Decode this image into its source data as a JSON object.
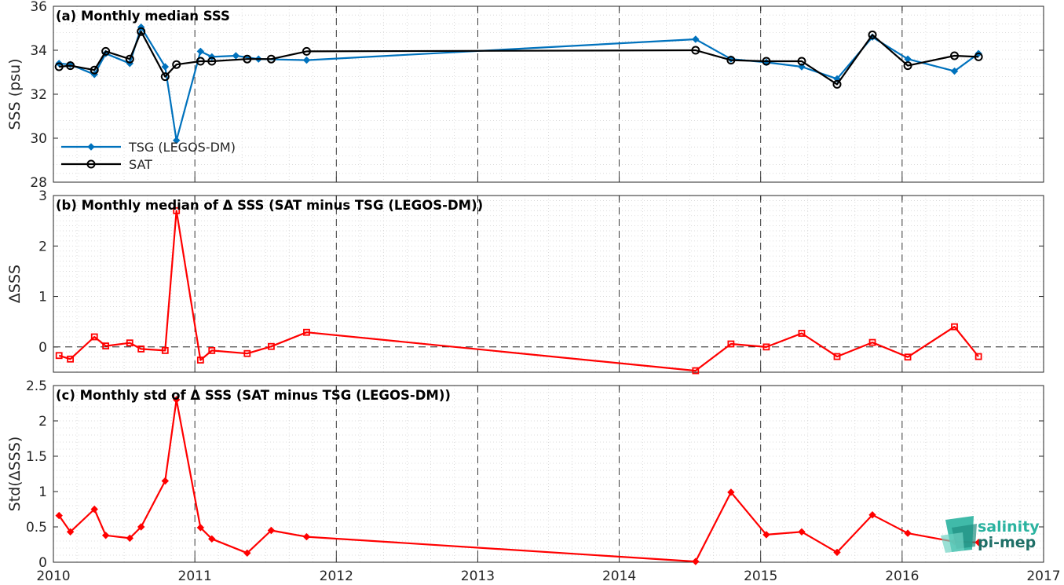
{
  "chart_data": [
    {
      "type": "line",
      "title": "(a) Monthly median SSS",
      "xlabel": "",
      "ylabel": "SSS (psu)",
      "xlim": [
        2010,
        2017
      ],
      "ylim": [
        28,
        36
      ],
      "xticks": [
        "2010",
        "2011",
        "2012",
        "2013",
        "2014",
        "2015",
        "2016",
        "2017"
      ],
      "yticks": [
        "28",
        "30",
        "32",
        "34",
        "36"
      ],
      "grid": true,
      "legend_position": "bottom-left",
      "series": [
        {
          "name": "TSG (LEGOS-DM)",
          "color": "#0072BD",
          "marker": "diamond",
          "x": [
            2010.04,
            2010.12,
            2010.29,
            2010.37,
            2010.54,
            2010.62,
            2010.79,
            2010.87,
            2011.04,
            2011.12,
            2011.29,
            2011.45,
            2011.79,
            2014.54,
            2014.79,
            2015.04,
            2015.29,
            2015.54,
            2015.79,
            2016.04,
            2016.37,
            2016.54
          ],
          "y": [
            33.4,
            33.35,
            32.9,
            33.85,
            33.4,
            35.05,
            33.25,
            29.9,
            33.95,
            33.7,
            33.75,
            33.6,
            33.55,
            34.5,
            33.6,
            33.45,
            33.25,
            32.7,
            34.6,
            33.6,
            33.05,
            33.85
          ]
        },
        {
          "name": "SAT",
          "color": "#000000",
          "marker": "circle",
          "x": [
            2010.04,
            2010.12,
            2010.29,
            2010.37,
            2010.54,
            2010.62,
            2010.79,
            2010.87,
            2011.04,
            2011.12,
            2011.37,
            2011.54,
            2011.79,
            2014.54,
            2014.79,
            2015.04,
            2015.29,
            2015.54,
            2015.79,
            2016.04,
            2016.37,
            2016.54
          ],
          "y": [
            33.25,
            33.3,
            33.1,
            33.95,
            33.6,
            34.85,
            32.8,
            33.35,
            33.5,
            33.5,
            33.6,
            33.6,
            33.95,
            34.0,
            33.55,
            33.5,
            33.5,
            32.45,
            34.7,
            33.3,
            33.75,
            33.7
          ]
        }
      ]
    },
    {
      "type": "line",
      "title": "(b) Monthly median of Δ SSS (SAT minus TSG (LEGOS-DM))",
      "xlabel": "",
      "ylabel": "ΔSSS",
      "xlim": [
        2010,
        2017
      ],
      "ylim": [
        -0.5,
        3
      ],
      "yticks": [
        "0",
        "1",
        "2",
        "3"
      ],
      "reference_line": 0,
      "grid": true,
      "series": [
        {
          "name": "",
          "color": "#FF0000",
          "marker": "square",
          "x": [
            2010.04,
            2010.12,
            2010.29,
            2010.37,
            2010.54,
            2010.62,
            2010.79,
            2010.87,
            2011.04,
            2011.12,
            2011.37,
            2011.54,
            2011.79,
            2014.54,
            2014.79,
            2015.04,
            2015.29,
            2015.54,
            2015.79,
            2016.04,
            2016.37,
            2016.54
          ],
          "y": [
            -0.17,
            -0.24,
            0.2,
            0.02,
            0.08,
            -0.04,
            -0.07,
            2.7,
            -0.26,
            -0.07,
            -0.13,
            0.01,
            0.29,
            -0.47,
            0.06,
            0.0,
            0.27,
            -0.19,
            0.09,
            -0.2,
            0.4,
            -0.19
          ]
        }
      ]
    },
    {
      "type": "line",
      "title": "(c) Monthly std of Δ SSS (SAT minus TSG (LEGOS-DM))",
      "xlabel": "",
      "ylabel": "Std(ΔSSS)",
      "xlim": [
        2010,
        2017
      ],
      "ylim": [
        0,
        2.5
      ],
      "yticks": [
        "0",
        "0.5",
        "1",
        "1.5",
        "2",
        "2.5"
      ],
      "grid": true,
      "series": [
        {
          "name": "",
          "color": "#FF0000",
          "marker": "diamond",
          "x": [
            2010.04,
            2010.12,
            2010.29,
            2010.37,
            2010.54,
            2010.62,
            2010.79,
            2010.87,
            2011.04,
            2011.12,
            2011.37,
            2011.54,
            2011.79,
            2014.54,
            2014.79,
            2015.04,
            2015.29,
            2015.54,
            2015.79,
            2016.04,
            2016.37,
            2016.54
          ],
          "y": [
            0.66,
            0.43,
            0.75,
            0.38,
            0.34,
            0.5,
            1.15,
            2.3,
            0.49,
            0.33,
            0.13,
            0.45,
            0.36,
            0.01,
            0.99,
            0.39,
            0.43,
            0.14,
            0.67,
            0.41,
            0.29,
            0.28
          ]
        }
      ]
    }
  ],
  "logo": {
    "line1": "salinity",
    "line2": "pi-mep",
    "color1": "#2bb3a0",
    "color2": "#1f6f67"
  }
}
